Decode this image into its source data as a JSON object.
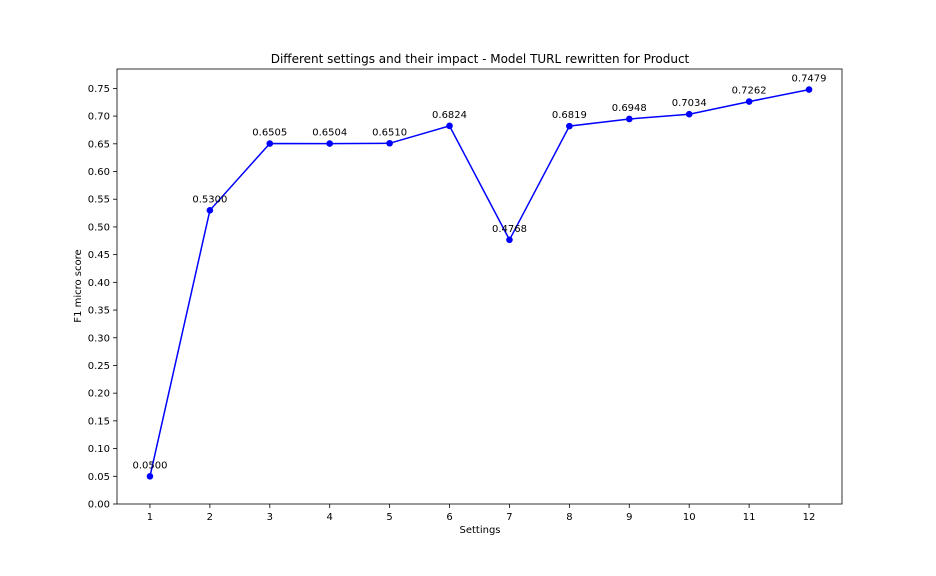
{
  "chart_data": {
    "type": "line",
    "title": "Different settings and their impact - Model TURL rewritten for Product",
    "xlabel": "Settings",
    "ylabel": "F1 micro score",
    "x": [
      1,
      2,
      3,
      4,
      5,
      6,
      7,
      8,
      9,
      10,
      11,
      12
    ],
    "x_ticks": [
      "1",
      "2",
      "3",
      "4",
      "5",
      "6",
      "7",
      "8",
      "9",
      "10",
      "11",
      "12"
    ],
    "xlim": [
      0.45,
      12.55
    ],
    "ylim": [
      0.0,
      0.785
    ],
    "y_ticks": [
      "0.00",
      "0.05",
      "0.10",
      "0.15",
      "0.20",
      "0.25",
      "0.30",
      "0.35",
      "0.40",
      "0.45",
      "0.50",
      "0.55",
      "0.60",
      "0.65",
      "0.70",
      "0.75"
    ],
    "series": [
      {
        "values": [
          0.05,
          0.53,
          0.6505,
          0.6504,
          0.651,
          0.6824,
          0.4768,
          0.6819,
          0.6948,
          0.7034,
          0.7262,
          0.7479
        ],
        "labels": [
          "0.0500",
          "0.5300",
          "0.6505",
          "0.6504",
          "0.6510",
          "0.6824",
          "0.4768",
          "0.6819",
          "0.6948",
          "0.7034",
          "0.7262",
          "0.7479"
        ],
        "color": "#0000ff",
        "marker": "circle"
      }
    ],
    "grid": false,
    "legend": "none"
  }
}
